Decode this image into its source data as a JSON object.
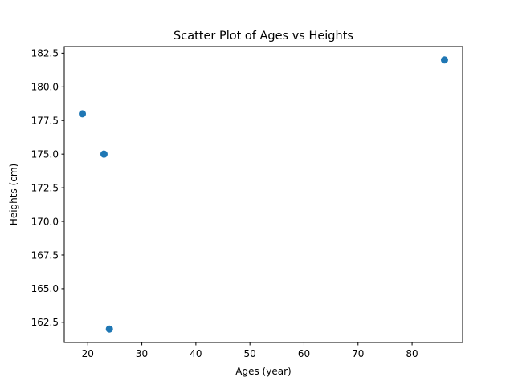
{
  "chart_data": {
    "type": "scatter",
    "title": "Scatter Plot of Ages vs Heights",
    "xlabel": "Ages (year)",
    "ylabel": "Heights (cm)",
    "x": [
      19,
      23,
      24,
      86
    ],
    "y": [
      178.0,
      175.0,
      162.0,
      182.0
    ],
    "xlim": [
      15.65,
      89.35
    ],
    "ylim": [
      161.0,
      183.0
    ],
    "xticks": [
      20,
      30,
      40,
      50,
      60,
      70,
      80
    ],
    "xtick_labels": [
      "20",
      "30",
      "40",
      "50",
      "60",
      "70",
      "80"
    ],
    "yticks": [
      162.5,
      165.0,
      167.5,
      170.0,
      172.5,
      175.0,
      177.5,
      180.0,
      182.5
    ],
    "ytick_labels": [
      "162.5",
      "165.0",
      "167.5",
      "170.0",
      "172.5",
      "175.0",
      "177.5",
      "180.0",
      "182.5"
    ],
    "grid": false,
    "colors": {
      "marker": "#1f77b4",
      "axes": "#000000",
      "background": "#ffffff"
    }
  }
}
